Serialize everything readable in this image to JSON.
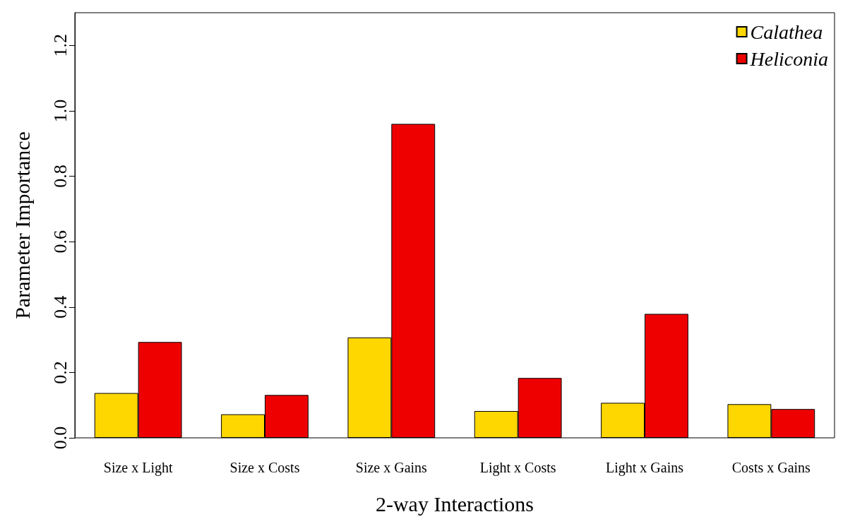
{
  "chart_data": {
    "type": "bar",
    "xlabel": "2-way Interactions",
    "ylabel": "Parameter Importance",
    "categories": [
      "Size x Light",
      "Size x Costs",
      "Size x Gains",
      "Light x Costs",
      "Light x Gains",
      "Costs x Gains"
    ],
    "series": [
      {
        "name": "Calathea",
        "color": "#ffd700",
        "values": [
          0.137,
          0.072,
          0.307,
          0.082,
          0.107,
          0.103
        ]
      },
      {
        "name": "Heliconia",
        "color": "#ee0000",
        "values": [
          0.293,
          0.131,
          0.96,
          0.183,
          0.379,
          0.088
        ]
      }
    ],
    "ylim": [
      0,
      1.3
    ],
    "yticks": [
      {
        "value": 0,
        "label": "0.0"
      },
      0.2,
      0.4,
      0.6,
      0.8,
      {
        "value": 1,
        "label": "1.0"
      },
      1.2
    ],
    "grid": false,
    "legend": "top right"
  }
}
